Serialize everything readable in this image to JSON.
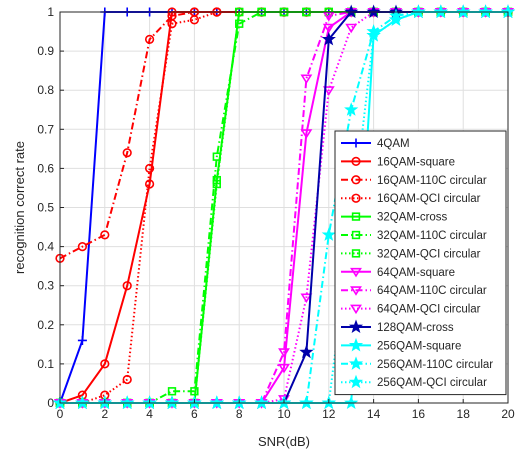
{
  "chart_data": {
    "type": "line",
    "xlabel": "SNR(dB)",
    "ylabel": "recognition correct rate",
    "xlim": [
      0,
      20
    ],
    "ylim": [
      0,
      1
    ],
    "xticks": [
      "0",
      "2",
      "4",
      "6",
      "8",
      "10",
      "12",
      "14",
      "16",
      "18",
      "20"
    ],
    "yticks": [
      "0",
      "0.1",
      "0.2",
      "0.3",
      "0.4",
      "0.5",
      "0.6",
      "0.7",
      "0.8",
      "0.9",
      "1"
    ],
    "grid": true,
    "legend_position": "right",
    "x": [
      0,
      1,
      2,
      3,
      4,
      5,
      6,
      7,
      8,
      9,
      10,
      11,
      12,
      13,
      14,
      15,
      16,
      17,
      18,
      19,
      20
    ],
    "series": [
      {
        "name": "4QAM",
        "color": "#0000ff",
        "dash": "solid",
        "marker": "plus",
        "values": [
          0,
          0.16,
          1,
          1,
          1,
          1,
          1,
          1,
          1,
          1,
          1,
          1,
          1,
          1,
          1,
          1,
          1,
          1,
          1,
          1,
          1
        ]
      },
      {
        "name": "16QAM-square",
        "color": "#ff0000",
        "dash": "solid",
        "marker": "circle",
        "values": [
          0,
          0.02,
          0.1,
          0.3,
          0.56,
          1,
          1,
          1,
          1,
          1,
          1,
          1,
          1,
          1,
          1,
          1,
          1,
          1,
          1,
          1,
          1
        ]
      },
      {
        "name": "16QAM-110C circular",
        "color": "#ff0000",
        "dash": "dashdot",
        "marker": "circle",
        "values": [
          0.37,
          0.4,
          0.43,
          0.64,
          0.93,
          0.99,
          1,
          1,
          1,
          1,
          1,
          1,
          1,
          1,
          1,
          1,
          1,
          1,
          1,
          1,
          1
        ]
      },
      {
        "name": "16QAM-QCI circular",
        "color": "#ff0000",
        "dash": "dotted",
        "marker": "circle",
        "values": [
          0,
          0,
          0.02,
          0.06,
          0.6,
          0.97,
          0.98,
          1,
          1,
          1,
          1,
          1,
          1,
          1,
          1,
          1,
          1,
          1,
          1,
          1,
          1
        ]
      },
      {
        "name": "32QAM-cross",
        "color": "#00ff00",
        "dash": "solid",
        "marker": "square",
        "values": [
          0,
          0,
          0,
          0,
          0,
          0,
          0,
          0.57,
          1,
          1,
          1,
          1,
          1,
          1,
          1,
          1,
          1,
          1,
          1,
          1,
          1
        ]
      },
      {
        "name": "32QAM-110C circular",
        "color": "#00ff00",
        "dash": "dashdot",
        "marker": "square",
        "values": [
          0,
          0,
          0,
          0,
          0,
          0.03,
          0.03,
          0.63,
          0.97,
          1,
          1,
          1,
          1,
          1,
          1,
          1,
          1,
          1,
          1,
          1,
          1
        ]
      },
      {
        "name": "32QAM-QCI circular",
        "color": "#00ff00",
        "dash": "dotted",
        "marker": "square",
        "values": [
          0,
          0,
          0,
          0,
          0,
          0,
          0,
          0.56,
          1,
          1,
          1,
          1,
          1,
          1,
          1,
          1,
          1,
          1,
          1,
          1,
          1
        ]
      },
      {
        "name": "64QAM-square",
        "color": "#ff00ff",
        "dash": "solid",
        "marker": "triangle-down",
        "values": [
          0,
          0,
          0,
          0,
          0,
          0,
          0,
          0,
          0,
          0,
          0.09,
          0.69,
          0.96,
          1,
          1,
          1,
          1,
          1,
          1,
          1,
          1
        ]
      },
      {
        "name": "64QAM-110C circular",
        "color": "#ff00ff",
        "dash": "dashdot",
        "marker": "triangle-down",
        "values": [
          0,
          0,
          0,
          0,
          0,
          0,
          0,
          0,
          0,
          0,
          0.13,
          0.83,
          0.99,
          1,
          1,
          1,
          1,
          1,
          1,
          1,
          1
        ]
      },
      {
        "name": "64QAM-QCI circular",
        "color": "#ff00ff",
        "dash": "dotted",
        "marker": "triangle-down",
        "values": [
          0,
          0,
          0,
          0,
          0,
          0,
          0,
          0,
          0,
          0,
          0.01,
          0.27,
          0.8,
          0.96,
          1,
          1,
          1,
          1,
          1,
          1,
          1
        ]
      },
      {
        "name": "128QAM-cross",
        "color": "#0000aa",
        "dash": "solid",
        "marker": "star",
        "values": [
          0,
          0,
          0,
          0,
          0,
          0,
          0,
          0,
          0,
          0,
          0,
          0.13,
          0.93,
          1,
          1,
          1,
          1,
          1,
          1,
          1,
          1
        ]
      },
      {
        "name": "256QAM-square",
        "color": "#00ffff",
        "dash": "solid",
        "marker": "star",
        "values": [
          0,
          0,
          0,
          0,
          0,
          0,
          0,
          0,
          0,
          0,
          0,
          0,
          0,
          0,
          0.94,
          0.98,
          1,
          1,
          1,
          1,
          1
        ]
      },
      {
        "name": "256QAM-110C circular",
        "color": "#00ffff",
        "dash": "dashdot",
        "marker": "star",
        "values": [
          0,
          0,
          0,
          0,
          0,
          0,
          0,
          0,
          0,
          0,
          0,
          0,
          0.43,
          0.75,
          0.95,
          0.99,
          1,
          1,
          1,
          1,
          1
        ]
      },
      {
        "name": "256QAM-QCI circular",
        "color": "#00ffff",
        "dash": "dotted",
        "marker": "star",
        "values": [
          0,
          0,
          0,
          0,
          0,
          0,
          0,
          0,
          0,
          0,
          0,
          0,
          0,
          0.45,
          0.94,
          0.98,
          1,
          1,
          1,
          1,
          1
        ]
      }
    ]
  }
}
